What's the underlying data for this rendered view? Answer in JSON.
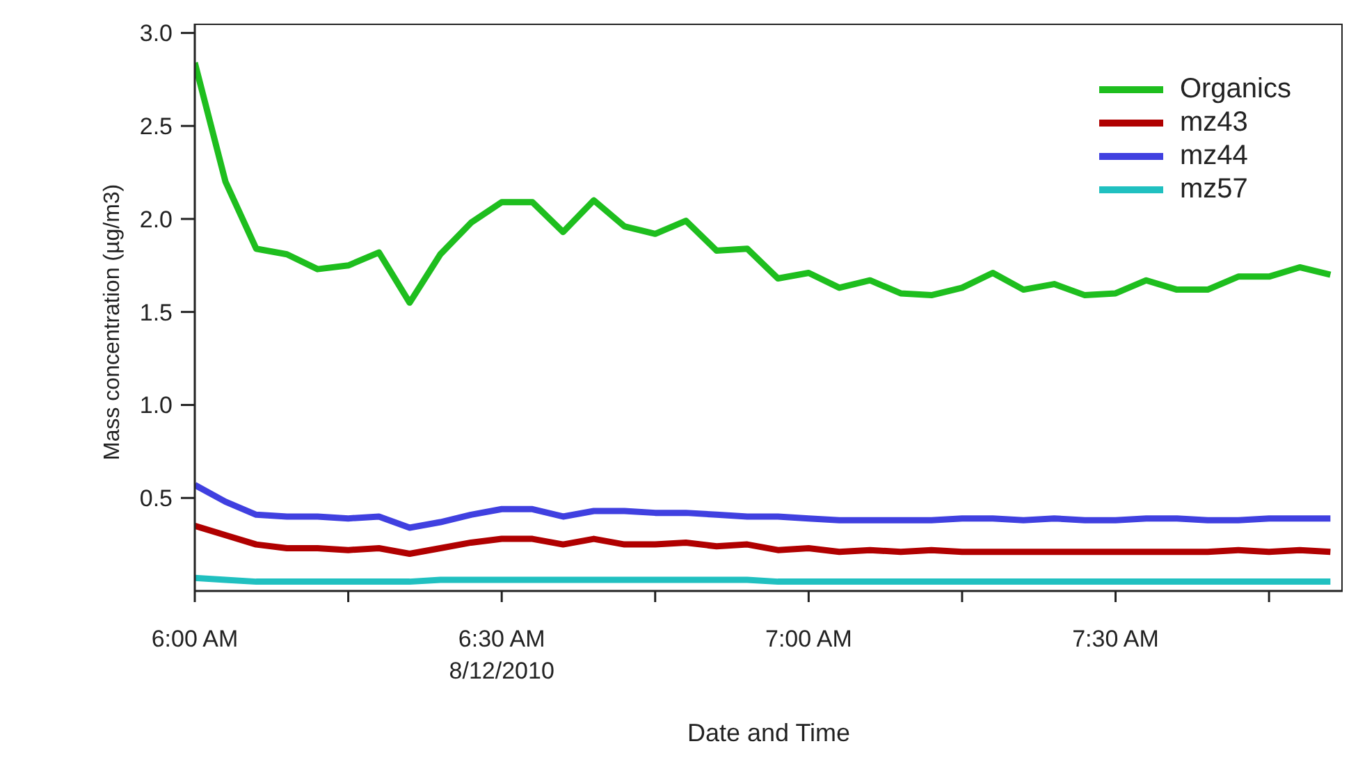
{
  "chart_data": {
    "type": "line",
    "xlabel": "Date and Time",
    "ylabel": "Mass concentration (µg/m3)",
    "x": [
      6.0,
      6.05,
      6.1,
      6.15,
      6.2,
      6.25,
      6.3,
      6.35,
      6.4,
      6.45,
      6.5,
      6.55,
      6.6,
      6.65,
      6.7,
      6.75,
      6.8,
      6.85,
      6.9,
      6.95,
      7.0,
      7.05,
      7.1,
      7.15,
      7.2,
      7.25,
      7.3,
      7.35,
      7.4,
      7.45,
      7.5,
      7.55,
      7.6,
      7.65,
      7.7,
      7.75,
      7.8,
      7.85
    ],
    "series": [
      {
        "name": "Organics",
        "color": "#1ebe1e",
        "values": [
          2.84,
          2.2,
          1.84,
          1.81,
          1.73,
          1.75,
          1.82,
          1.55,
          1.81,
          1.98,
          2.09,
          2.09,
          1.93,
          2.1,
          1.96,
          1.92,
          1.99,
          1.83,
          1.84,
          1.68,
          1.71,
          1.63,
          1.67,
          1.6,
          1.59,
          1.63,
          1.71,
          1.62,
          1.65,
          1.59,
          1.6,
          1.67,
          1.62,
          1.62,
          1.69,
          1.69,
          1.74,
          1.7
        ]
      },
      {
        "name": "mz43",
        "color": "#b00000",
        "values": [
          0.35,
          0.3,
          0.25,
          0.23,
          0.23,
          0.22,
          0.23,
          0.2,
          0.23,
          0.26,
          0.28,
          0.28,
          0.25,
          0.28,
          0.25,
          0.25,
          0.26,
          0.24,
          0.25,
          0.22,
          0.23,
          0.21,
          0.22,
          0.21,
          0.22,
          0.21,
          0.21,
          0.21,
          0.21,
          0.21,
          0.21,
          0.21,
          0.21,
          0.21,
          0.22,
          0.21,
          0.22,
          0.21
        ]
      },
      {
        "name": "mz44",
        "color": "#4040e0",
        "values": [
          0.57,
          0.48,
          0.41,
          0.4,
          0.4,
          0.39,
          0.4,
          0.34,
          0.37,
          0.41,
          0.44,
          0.44,
          0.4,
          0.43,
          0.43,
          0.42,
          0.42,
          0.41,
          0.4,
          0.4,
          0.39,
          0.38,
          0.38,
          0.38,
          0.38,
          0.39,
          0.39,
          0.38,
          0.39,
          0.38,
          0.38,
          0.39,
          0.39,
          0.38,
          0.38,
          0.39,
          0.39,
          0.39
        ]
      },
      {
        "name": "mz57",
        "color": "#20c0c0",
        "values": [
          0.07,
          0.06,
          0.05,
          0.05,
          0.05,
          0.05,
          0.05,
          0.05,
          0.06,
          0.06,
          0.06,
          0.06,
          0.06,
          0.06,
          0.06,
          0.06,
          0.06,
          0.06,
          0.06,
          0.05,
          0.05,
          0.05,
          0.05,
          0.05,
          0.05,
          0.05,
          0.05,
          0.05,
          0.05,
          0.05,
          0.05,
          0.05,
          0.05,
          0.05,
          0.05,
          0.05,
          0.05,
          0.05
        ]
      }
    ],
    "xlim": [
      6.0,
      7.87
    ],
    "xticks": [
      {
        "value": 6.0,
        "label": "6:00 AM"
      },
      {
        "value": 6.25,
        "label": null
      },
      {
        "value": 6.5,
        "label": "6:30 AM\n8/12/2010"
      },
      {
        "value": 6.75,
        "label": null
      },
      {
        "value": 7.0,
        "label": "7:00 AM"
      },
      {
        "value": 7.25,
        "label": null
      },
      {
        "value": 7.5,
        "label": "7:30 AM"
      },
      {
        "value": 7.75,
        "label": null
      }
    ],
    "ylim": [
      0,
      3.05
    ],
    "yticks": [
      {
        "value": 0.5,
        "label": "0.5"
      },
      {
        "value": 1.0,
        "label": "1.0"
      },
      {
        "value": 1.5,
        "label": "1.5"
      },
      {
        "value": 2.0,
        "label": "2.0"
      },
      {
        "value": 2.5,
        "label": "2.5"
      },
      {
        "value": 3.0,
        "label": "3.0"
      }
    ],
    "legend": "top right",
    "grid": false,
    "marker": "none",
    "line_style": "solid"
  }
}
